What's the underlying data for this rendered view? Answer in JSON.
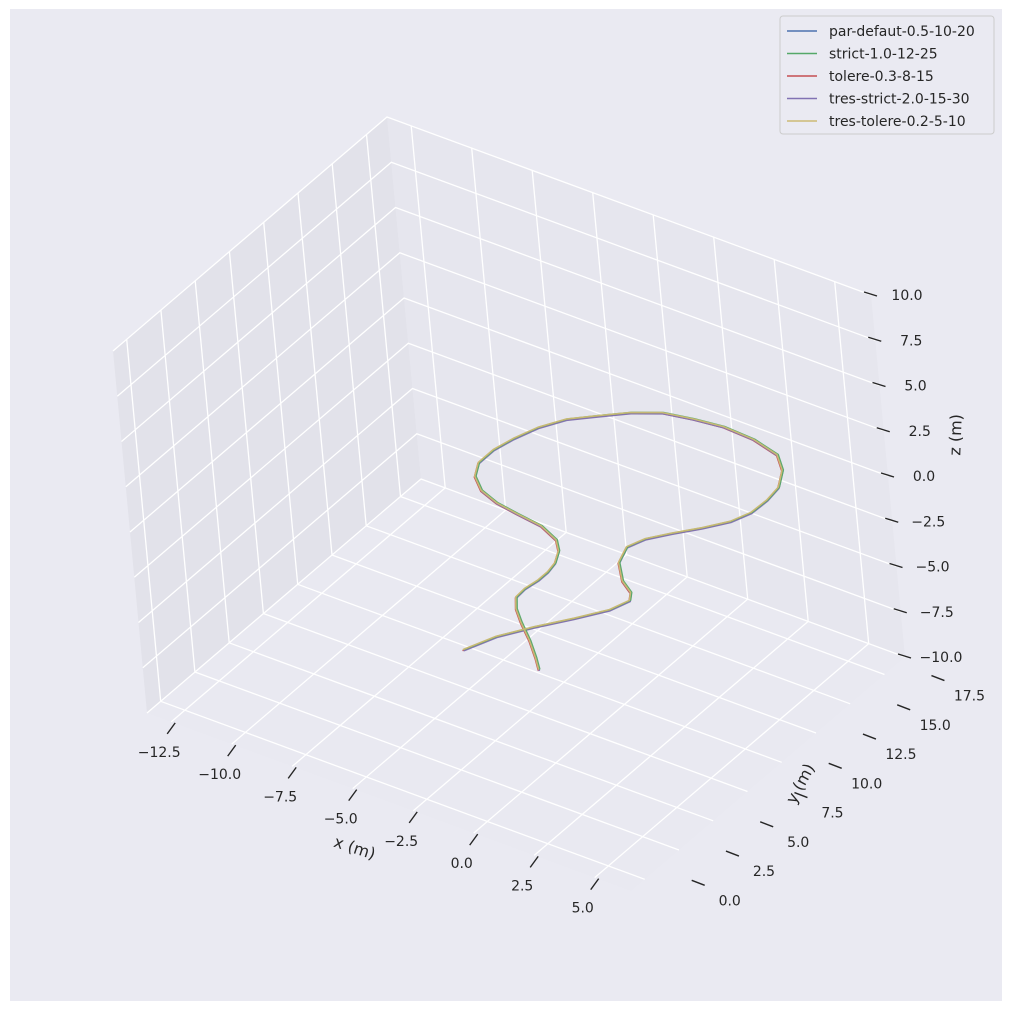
{
  "chart_data": {
    "type": "line",
    "projection": "3d",
    "xlabel": "x (m)",
    "ylabel": "y (m)",
    "zlabel": "z (m)",
    "xlim": [
      -13.5,
      6.5
    ],
    "ylim": [
      -1.0,
      19.0
    ],
    "zlim": [
      -10.0,
      10.0
    ],
    "x_ticks": [
      "−12.5",
      "−10.0",
      "−7.5",
      "−5.0",
      "−2.5",
      "0.0",
      "2.5",
      "5.0"
    ],
    "y_ticks": [
      "0.0",
      "2.5",
      "5.0",
      "7.5",
      "10.0",
      "12.5",
      "15.0",
      "17.5"
    ],
    "z_ticks": [
      "−10.0",
      "−7.5",
      "−5.0",
      "−2.5",
      "0.0",
      "2.5",
      "5.0",
      "7.5",
      "10.0"
    ],
    "x_tick_values": [
      -12.5,
      -10.0,
      -7.5,
      -5.0,
      -2.5,
      0.0,
      2.5,
      5.0
    ],
    "y_tick_values": [
      0.0,
      2.5,
      5.0,
      7.5,
      10.0,
      12.5,
      15.0,
      17.5
    ],
    "z_tick_values": [
      -10.0,
      -7.5,
      -5.0,
      -2.5,
      0.0,
      2.5,
      5.0,
      7.5,
      10.0
    ],
    "grid": true,
    "legend_position": "upper-right",
    "trajectory": {
      "x": [
        0.0,
        0.5,
        1.2,
        2.0,
        2.6,
        2.8,
        2.5,
        2.0,
        1.6,
        1.5,
        1.7,
        2.2,
        2.9,
        3.5,
        3.8,
        3.9,
        3.8,
        3.4,
        2.8,
        1.6,
        0.3,
        -0.9,
        -2.0,
        -3.0,
        -3.9,
        -4.7,
        -5.3,
        -5.7,
        -5.9,
        -5.9,
        -5.6,
        -5.0,
        -4.2,
        -3.3,
        -2.2,
        -1.3,
        -0.8,
        -0.5,
        -0.4,
        -0.4,
        -0.5,
        -0.4,
        0.0,
        0.6,
        1.4,
        2.1,
        2.5
      ],
      "y": [
        -0.5,
        1.0,
        2.5,
        4.0,
        5.5,
        6.6,
        7.2,
        7.5,
        8.0,
        8.8,
        9.8,
        10.8,
        11.8,
        12.8,
        13.8,
        14.8,
        15.8,
        16.8,
        17.5,
        17.9,
        18.0,
        17.9,
        17.6,
        17.0,
        16.2,
        15.3,
        14.3,
        13.2,
        12.1,
        11.0,
        10.2,
        9.6,
        9.3,
        9.2,
        9.0,
        8.5,
        7.8,
        7.0,
        6.3,
        5.6,
        4.8,
        4.0,
        3.3,
        2.6,
        1.8,
        1.0,
        0.5
      ],
      "z": [
        -0.2,
        -0.2,
        -0.3,
        -0.4,
        -0.6,
        -0.7,
        -0.8,
        -0.6,
        -0.1,
        0.2,
        0.1,
        0.0,
        0.0,
        0.0,
        0.0,
        0.1,
        0.1,
        0.2,
        0.3,
        0.3,
        0.3,
        0.2,
        0.2,
        0.1,
        0.0,
        0.0,
        -0.1,
        -0.2,
        -0.2,
        -0.2,
        -0.3,
        -0.4,
        -0.5,
        -0.6,
        -0.6,
        -0.6,
        -0.5,
        -0.5,
        -0.5,
        -0.5,
        -0.5,
        -0.4,
        -0.4,
        -0.4,
        -0.5,
        -0.6,
        -0.7
      ]
    },
    "series": [
      {
        "name": "par-defaut-0.5-10-20",
        "color": "#4c72b0"
      },
      {
        "name": "strict-1.0-12-25",
        "color": "#55a868"
      },
      {
        "name": "tolere-0.3-8-15",
        "color": "#c44e52"
      },
      {
        "name": "tres-strict-2.0-15-30",
        "color": "#8172b3"
      },
      {
        "name": "tres-tolere-0.2-5-10",
        "color": "#ccb974"
      }
    ],
    "colors": {
      "figure_background": "#eaeaf2",
      "pane_background": "#eaeaf2",
      "grid": "#ffffff",
      "text": "#262626"
    }
  }
}
